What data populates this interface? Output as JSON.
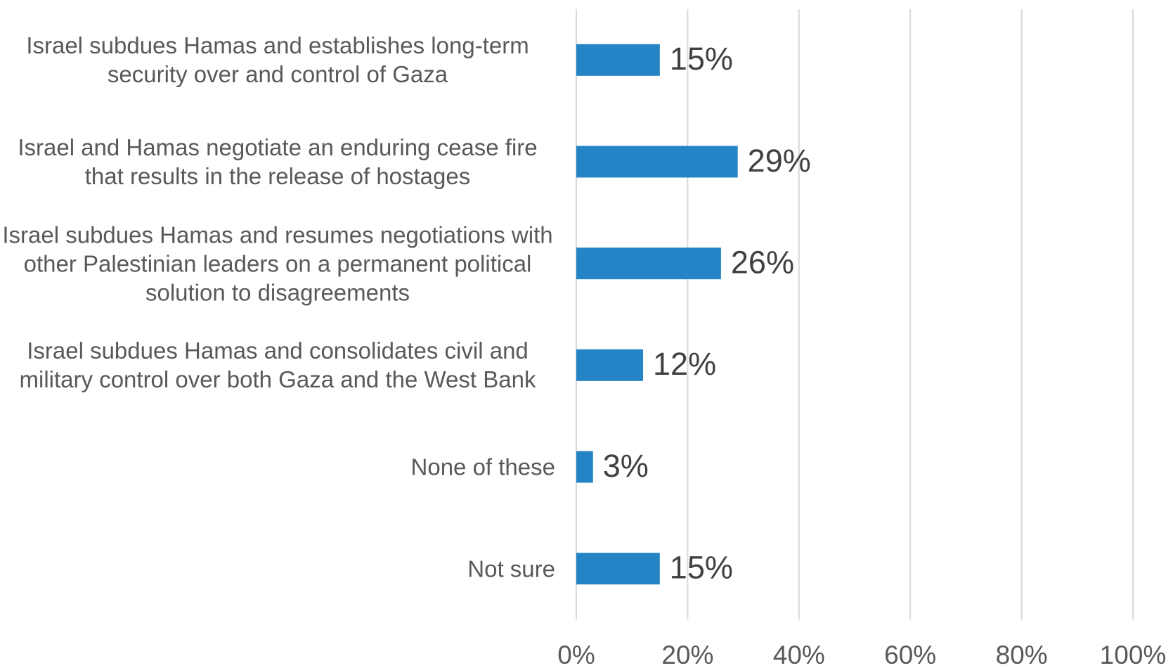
{
  "chart_data": {
    "type": "bar",
    "orientation": "horizontal",
    "categories": [
      "Israel subdues Hamas and establishes long-term security over and control of Gaza",
      "Israel and Hamas negotiate an enduring cease fire that results in the release of hostages",
      "Israel subdues Hamas and resumes negotiations with other Palestinian leaders on a permanent political solution to disagreements",
      "Israel subdues Hamas and consolidates civil and military control over both Gaza and the West Bank",
      "None of these",
      "Not sure"
    ],
    "values": [
      15,
      29,
      26,
      12,
      3,
      15
    ],
    "value_labels": [
      "15%",
      "29%",
      "26%",
      "12%",
      "3%",
      "15%"
    ],
    "color": "#2484c6",
    "xlim": [
      0,
      100
    ],
    "xticks": [
      {
        "value": 0,
        "label": "0%"
      },
      {
        "value": 20,
        "label": "20%"
      },
      {
        "value": 40,
        "label": "40%"
      },
      {
        "value": 60,
        "label": "60%"
      },
      {
        "value": 80,
        "label": "80%"
      },
      {
        "value": 100,
        "label": "100%"
      }
    ],
    "grid": true
  }
}
